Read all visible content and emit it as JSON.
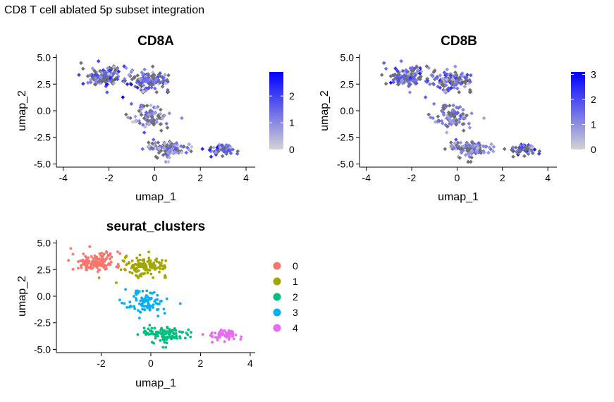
{
  "page_title": "CD8 T cell ablated 5p subset integration",
  "colors": {
    "expr_low": "#d3d3d3",
    "expr_high": "#0000ff",
    "cluster_0": "#F8766D",
    "cluster_1": "#A3A500",
    "cluster_2": "#00BF7D",
    "cluster_3": "#00B0F6",
    "cluster_4": "#E76BF3",
    "nonexpr_grey": "#707070"
  },
  "chart_data": [
    {
      "type": "scatter",
      "title": "CD8A",
      "xlabel": "umap_1",
      "ylabel": "umap_2",
      "xlim": [
        -4.3,
        4.4
      ],
      "ylim": [
        -5.3,
        5.3
      ],
      "xticks": [
        -4,
        -2,
        0,
        2,
        4
      ],
      "yticks": [
        -5.0,
        -2.5,
        0.0,
        2.5,
        5.0
      ],
      "ytick_labels": [
        "-5.0",
        "-2.5",
        "0.0",
        "2.5",
        "5.0"
      ],
      "legend": {
        "type": "colorbar",
        "min": 0,
        "max": 2.9,
        "ticks": [
          0,
          1,
          2
        ],
        "low": "#d3d3d3",
        "high": "#0000ff",
        "placement": "right"
      }
    },
    {
      "type": "scatter",
      "title": "CD8B",
      "xlabel": "umap_1",
      "ylabel": "umap_2",
      "xlim": [
        -4.3,
        4.4
      ],
      "ylim": [
        -5.3,
        5.3
      ],
      "xticks": [
        -4,
        -2,
        0,
        2,
        4
      ],
      "yticks": [
        -5.0,
        -2.5,
        0.0,
        2.5,
        5.0
      ],
      "ytick_labels": [
        "-5.0",
        "-2.5",
        "0.0",
        "2.5",
        "5.0"
      ],
      "legend": {
        "type": "colorbar",
        "min": 0,
        "max": 3.1,
        "ticks": [
          0,
          1,
          2,
          3
        ],
        "low": "#d3d3d3",
        "high": "#0000ff",
        "placement": "right"
      }
    },
    {
      "type": "scatter",
      "title": "seurat_clusters",
      "xlabel": "umap_1",
      "ylabel": "umap_2",
      "xlim": [
        -3.8,
        4.2
      ],
      "ylim": [
        -5.3,
        5.3
      ],
      "xticks": [
        -2,
        0,
        2,
        4
      ],
      "yticks": [
        -5.0,
        -2.5,
        0.0,
        2.5,
        5.0
      ],
      "ytick_labels": [
        "-5.0",
        "-2.5",
        "0.0",
        "2.5",
        "5.0"
      ],
      "legend": {
        "type": "categorical",
        "placement": "right",
        "entries": [
          {
            "label": "0",
            "color": "#F8766D"
          },
          {
            "label": "1",
            "color": "#A3A500"
          },
          {
            "label": "2",
            "color": "#00BF7D"
          },
          {
            "label": "3",
            "color": "#00B0F6"
          },
          {
            "label": "4",
            "color": "#E76BF3"
          }
        ]
      },
      "clusters": [
        {
          "label": "0",
          "center": [
            -2.2,
            3.2
          ],
          "spread": [
            0.9,
            0.8
          ],
          "n": 150
        },
        {
          "label": "1",
          "center": [
            -0.2,
            2.8
          ],
          "spread": [
            0.8,
            0.8
          ],
          "n": 130
        },
        {
          "label": "3",
          "center": [
            -0.2,
            -0.6
          ],
          "spread": [
            0.8,
            1.0
          ],
          "n": 90
        },
        {
          "label": "2",
          "center": [
            0.6,
            -3.6
          ],
          "spread": [
            0.9,
            0.7
          ],
          "n": 110
        },
        {
          "label": "4",
          "center": [
            2.9,
            -3.6
          ],
          "spread": [
            0.6,
            0.5
          ],
          "n": 70
        }
      ]
    }
  ]
}
